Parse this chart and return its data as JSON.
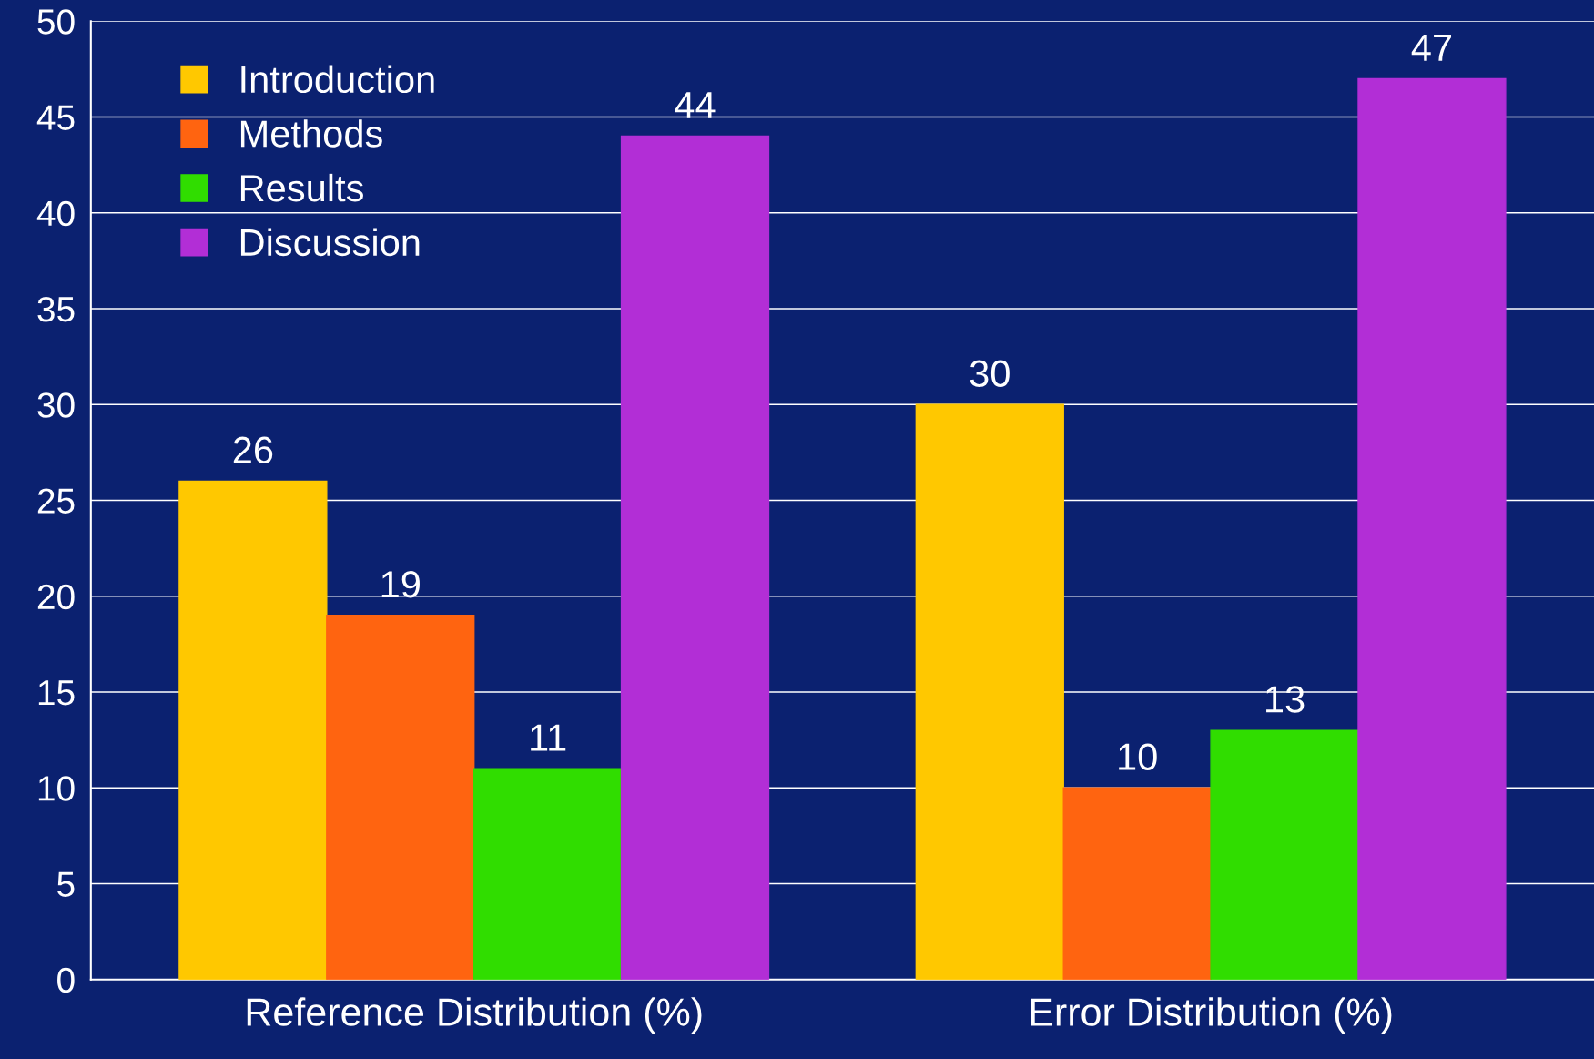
{
  "chart_data": {
    "type": "bar",
    "categories": [
      "Reference Distribution (%)",
      "Error Distribution (%)"
    ],
    "series": [
      {
        "name": "Introduction",
        "color": "#ffc800",
        "values": [
          26,
          30
        ]
      },
      {
        "name": "Methods",
        "color": "#ff6410",
        "values": [
          19,
          10
        ]
      },
      {
        "name": "Results",
        "color": "#30dd00",
        "values": [
          11,
          13
        ]
      },
      {
        "name": "Discussion",
        "color": "#b22ed6",
        "values": [
          44,
          47
        ]
      }
    ],
    "ylim": [
      0,
      50
    ],
    "yticks": [
      0,
      5,
      10,
      15,
      20,
      25,
      30,
      35,
      40,
      45,
      50
    ],
    "grid": "y",
    "legend": "top left",
    "data_labels": true
  }
}
